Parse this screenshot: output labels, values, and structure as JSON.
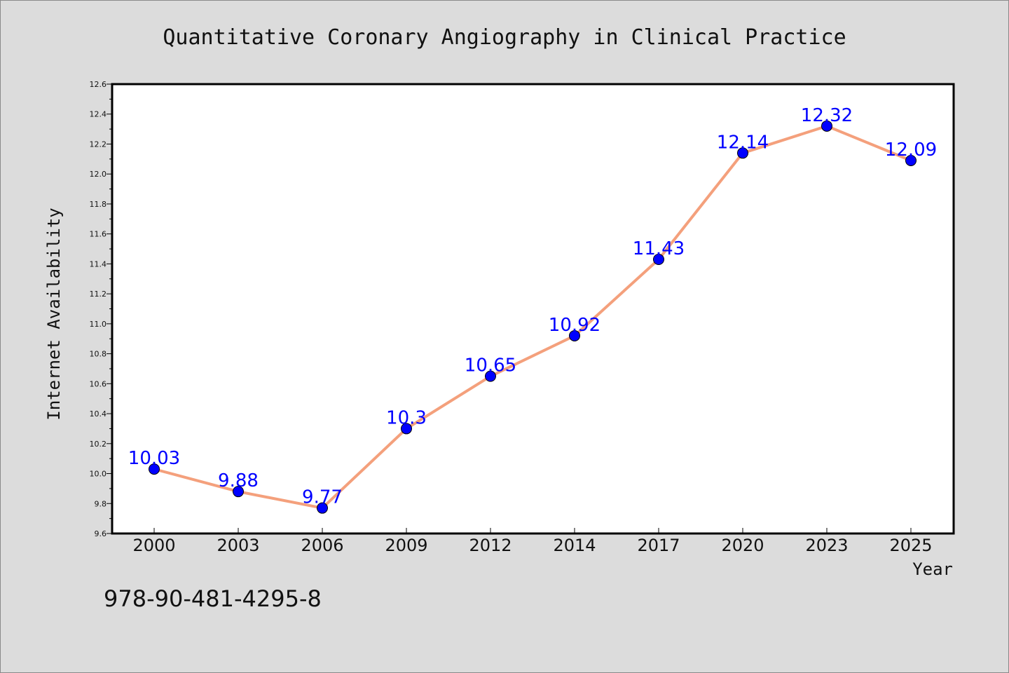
{
  "chart_data": {
    "type": "line",
    "title": "Quantitative Coronary Angiography in Clinical Practice",
    "xlabel": "Year",
    "ylabel": "Internet Availability",
    "categories": [
      "2000",
      "2003",
      "2006",
      "2009",
      "2012",
      "2014",
      "2017",
      "2020",
      "2023",
      "2025"
    ],
    "series": [
      {
        "values": [
          10.03,
          9.88,
          9.77,
          10.3,
          10.65,
          10.92,
          11.43,
          12.14,
          12.32,
          12.09
        ],
        "labels": [
          "10.03",
          "9.88",
          "9.77",
          "10.3",
          "10.65",
          "10.92",
          "11.43",
          "12.14",
          "12.32",
          "12.09"
        ],
        "line_color": "#f4a07c",
        "marker_color": "#0000ff"
      }
    ],
    "ylim": [
      9.6,
      12.6
    ],
    "yticks": [
      "9.6",
      "9.8",
      "10.0",
      "10.2",
      "10.4",
      "10.6",
      "10.8",
      "11.0",
      "11.2",
      "11.4",
      "11.6",
      "11.8",
      "12.0",
      "12.2",
      "12.4",
      "12.6"
    ],
    "grid": false
  },
  "footer_text": "978-90-481-4295-8",
  "colors": {
    "background": "#dcdcdc",
    "plot_background": "#ffffff",
    "data_label": "#0000ff"
  }
}
